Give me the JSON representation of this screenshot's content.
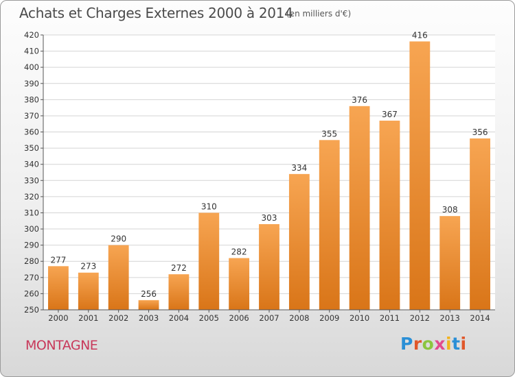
{
  "header": {
    "title": "Achats et Charges Externes 2000 à 2014",
    "subtitle": "(en milliers d'€)"
  },
  "footer": {
    "commune": "MONTAGNE",
    "logo_text": "Proxiti",
    "logo_colors": [
      "#2a8fd6",
      "#e0572a",
      "#8bc53f",
      "#e24a8d",
      "#f2b31e",
      "#2a8fd6",
      "#e0572a"
    ]
  },
  "chart_data": {
    "type": "bar",
    "categories": [
      "2000",
      "2001",
      "2002",
      "2003",
      "2004",
      "2005",
      "2006",
      "2007",
      "2008",
      "2009",
      "2010",
      "2011",
      "2012",
      "2013",
      "2014"
    ],
    "values": [
      277,
      273,
      290,
      256,
      272,
      310,
      282,
      303,
      334,
      355,
      376,
      367,
      416,
      308,
      356
    ],
    "ylim": [
      250,
      420
    ],
    "yticks": [
      250,
      260,
      270,
      280,
      290,
      300,
      310,
      320,
      330,
      340,
      350,
      360,
      370,
      380,
      390,
      400,
      410,
      420
    ],
    "grid": true,
    "bar_color_light": "#f7a552",
    "bar_color_dark": "#d97518",
    "grid_color": "#d4d4d4"
  }
}
